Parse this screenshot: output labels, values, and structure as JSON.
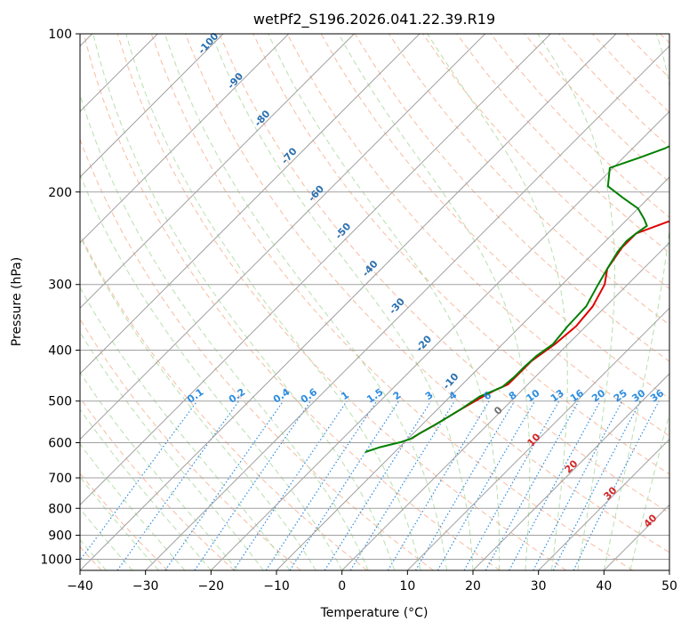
{
  "chart_data": {
    "type": "line",
    "title": "wetPf2_S196.2026.041.22.39.R19",
    "xlabel": "Temperature (°C)",
    "ylabel": "Pressure (hPa)",
    "xlim": [
      -40,
      50
    ],
    "ylim": [
      1050,
      100
    ],
    "x_ticks": [
      "-40",
      "-30",
      "-20",
      "-10",
      "0",
      "10",
      "20",
      "30",
      "40",
      "50"
    ],
    "y_ticks": [
      "100",
      "200",
      "300",
      "400",
      "500",
      "600",
      "700",
      "800",
      "900",
      "1000"
    ],
    "colors": {
      "temperature": "#e00000",
      "dewpoint": "#008000",
      "isotherm": "#a0a0a0",
      "dry_adiabat": "#f4a582",
      "moist_adiabat": "#a6d79a",
      "mixing_ratio": "#2b8cdf",
      "moist_label": "#2a70b0",
      "dry_label": "#d62728"
    },
    "series": [
      {
        "name": "Temperature",
        "points": [
          [
            26.5,
            100
          ],
          [
            20.5,
            140
          ],
          [
            16.7,
            170
          ],
          [
            10.5,
            200
          ],
          [
            -3.5,
            228
          ],
          [
            -6.5,
            240
          ],
          [
            -6.5,
            255
          ],
          [
            -5.5,
            280
          ],
          [
            -3.5,
            300
          ],
          [
            -2.0,
            330
          ],
          [
            -1.5,
            360
          ],
          [
            -2.0,
            390
          ],
          [
            -3.0,
            420
          ],
          [
            -3.0,
            450
          ],
          [
            -3.0,
            465
          ],
          [
            -4.0,
            475
          ],
          [
            -5.0,
            490
          ],
          [
            -6.5,
            520
          ],
          [
            -8.0,
            555
          ],
          [
            -9.0,
            575
          ],
          [
            -9.5,
            590
          ]
        ]
      },
      {
        "name": "Dewpoint",
        "points": [
          [
            -0.5,
            100
          ],
          [
            -5.0,
            120
          ],
          [
            -9.5,
            140
          ],
          [
            -12.0,
            152
          ],
          [
            -15.0,
            165
          ],
          [
            -17.5,
            172
          ],
          [
            -20.5,
            180
          ],
          [
            -18.0,
            195
          ],
          [
            -14.0,
            205
          ],
          [
            -10.0,
            215
          ],
          [
            -7.5,
            225
          ],
          [
            -6.0,
            232
          ],
          [
            -6.5,
            240
          ],
          [
            -6.8,
            248
          ],
          [
            -6.5,
            260
          ],
          [
            -5.5,
            280
          ],
          [
            -4.5,
            300
          ],
          [
            -3.0,
            330
          ],
          [
            -2.8,
            360
          ],
          [
            -2.3,
            390
          ],
          [
            -3.0,
            410
          ],
          [
            -3.2,
            430
          ],
          [
            -3.2,
            450
          ],
          [
            -3.5,
            470
          ],
          [
            -5.5,
            490
          ],
          [
            -6.5,
            520
          ],
          [
            -8.0,
            555
          ],
          [
            -9.0,
            575
          ],
          [
            -9.6,
            590
          ],
          [
            -10.5,
            598
          ],
          [
            -13.0,
            612
          ],
          [
            -14.5,
            625
          ]
        ]
      }
    ],
    "mixing_ratio_labels": [
      "0.1",
      "0.2",
      "0.4",
      "0.6",
      "1",
      "1.5",
      "2",
      "3",
      "4",
      "6",
      "8",
      "10",
      "13",
      "16",
      "20",
      "25",
      "30",
      "36"
    ],
    "moist_adiabat_labels": [
      "-100",
      "-90",
      "-80",
      "-70",
      "-60",
      "-50",
      "-40",
      "-30",
      "-20",
      "-10"
    ],
    "dry_adiabat_labels": [
      "0",
      "10",
      "20",
      "30",
      "40"
    ]
  }
}
